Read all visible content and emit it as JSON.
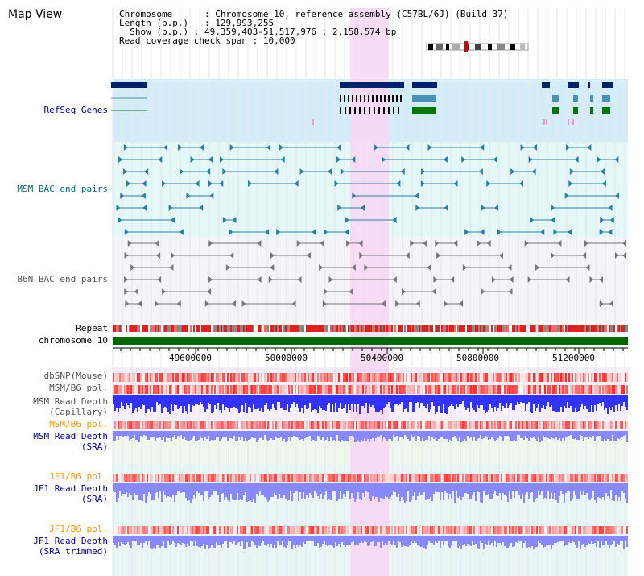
{
  "title": "Map View",
  "info": {
    "chromosome_label": "Chromosome",
    "chromosome_value": "Chromosome 10, reference assembly (C57BL/6J) (Build 37)",
    "length_label": "Length (b.p.)",
    "length_value": "129,993,255",
    "show_label": "Show (b.p.)",
    "show_value": "49,359,403-51,517,976 : 2,158,574 bp",
    "coverage_label": "Read coverage check span",
    "coverage_value": "10,000"
  },
  "tracks": {
    "refseq": "RefSeq Genes",
    "msm_bac": "MSM BAC end pairs",
    "b6n_bac": "B6N BAC end pairs",
    "repeat": "Repeat",
    "chromosome": "chromosome 10",
    "dbsnp": "dbSNP(Mouse)",
    "msm_b6_pol_1": "MSM/B6 pol.",
    "msm_depth_cap_1": "MSM Read Depth",
    "msm_depth_cap_2": "(Capillary)",
    "msm_b6_pol_2": "MSM/B6 pol.",
    "msm_depth_sra_1": "MSM Read Depth",
    "msm_depth_sra_2": "(SRA)",
    "jf1_pol_1": "JF1/B6 pol.",
    "jf1_depth_1": "JF1 Read Depth",
    "jf1_depth_2": "(SRA)",
    "jf1_pol_2": "JF1/B6 pol.",
    "jf1_depth_trim_1": "JF1 Read Depth",
    "jf1_depth_trim_2": "(SRA trimmed)"
  },
  "axis": {
    "ticks": [
      "49600000",
      "50000000",
      "50400000",
      "50800000",
      "51200000"
    ]
  },
  "colors": {
    "highlight": "#f8d8f4",
    "refseq_bg": "#d4ecf8",
    "msm_bg": "#e4f8f8",
    "navy": "#000099",
    "teal": "#006680",
    "gene_dark": "#002266",
    "gene_mid": "#4a90b8",
    "gene_green": "#007700",
    "chrom_bar": "#006600",
    "depth_blue": "#3333ff",
    "depth_light": "#8888ff",
    "pol_red": "#ff6666"
  }
}
